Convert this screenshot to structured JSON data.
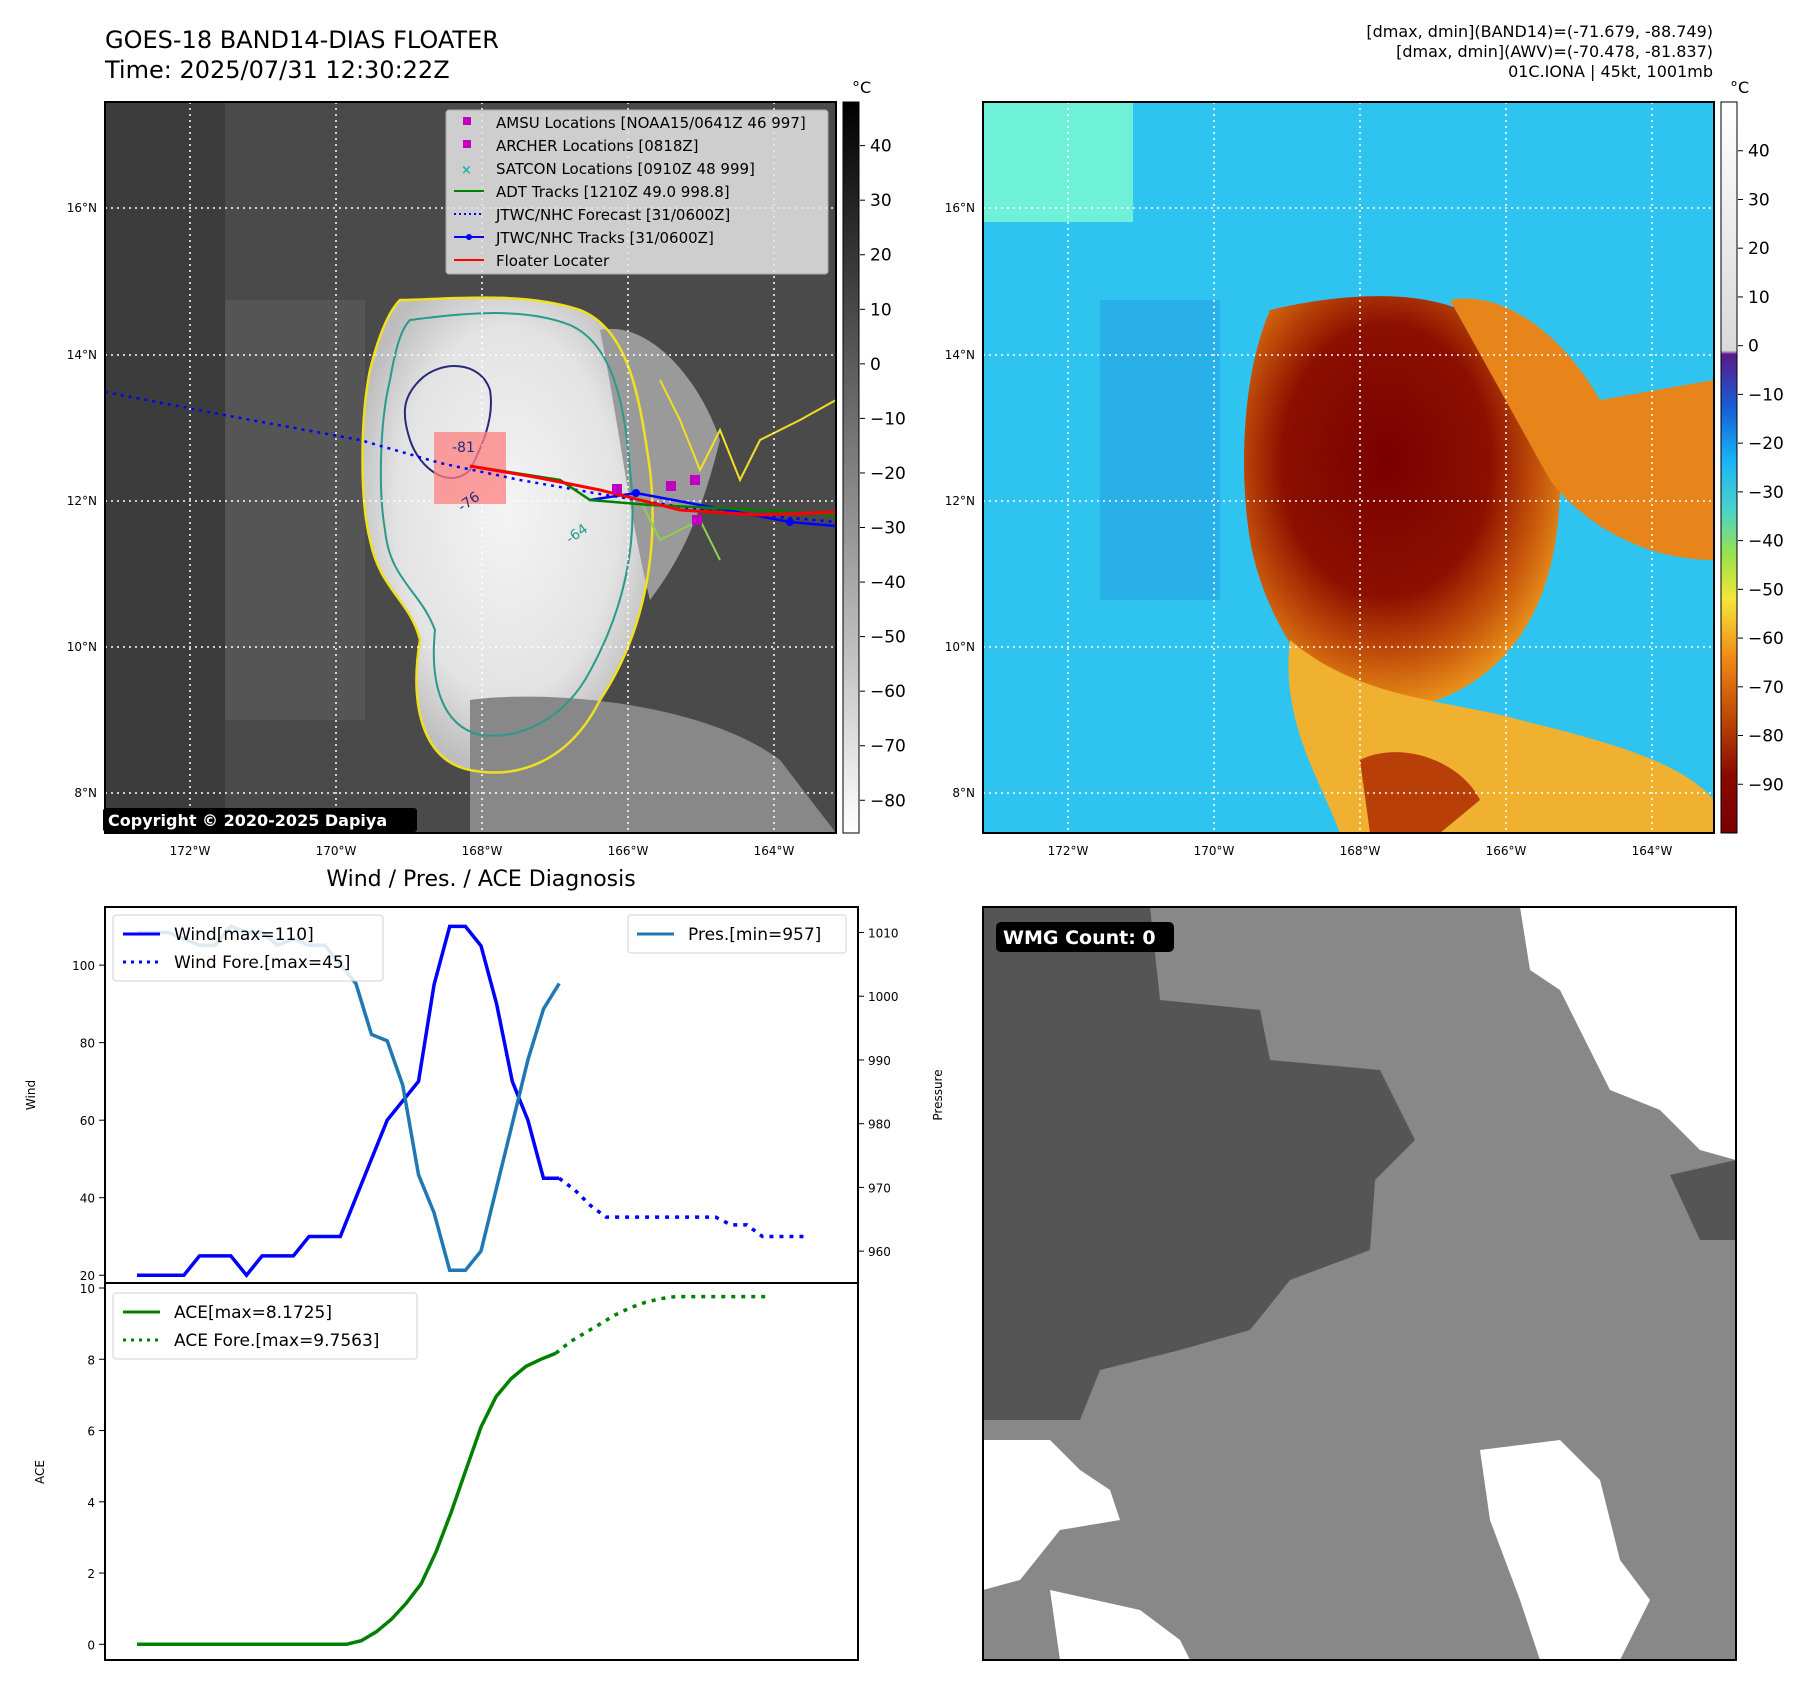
{
  "header": {
    "title_line1": "GOES-18 BAND14-DIAS FLOATER",
    "title_line2": "Time: 2025/07/31 12:30:22Z",
    "info_line1": "[dmax, dmin](BAND14)=(-71.679, -88.749)",
    "info_line2": "[dmax, dmin](AWV)=(-70.478, -81.837)",
    "info_line3": "01C.IONA | 45kt, 1001mb"
  },
  "map_common": {
    "lon_ticks": [
      "172°W",
      "170°W",
      "168°W",
      "166°W",
      "164°W"
    ],
    "lat_ticks": [
      "16°N",
      "14°N",
      "12°N",
      "10°N",
      "8°N"
    ],
    "unit": "°C"
  },
  "ir_panel": {
    "colorbar_ticks": [
      "40",
      "30",
      "20",
      "10",
      "0",
      "−10",
      "−20",
      "−30",
      "−40",
      "−50",
      "−60",
      "−70",
      "−80"
    ],
    "contour_labels": [
      "-81",
      "-76",
      "-64"
    ],
    "copyright": "Copyright © 2020-2025 Dapiya",
    "legend": [
      {
        "label": "AMSU Locations [NOAA15/0641Z 46 997]",
        "marker": "square",
        "color": "#c000c0"
      },
      {
        "label": "ARCHER Locations [0818Z]",
        "marker": "square",
        "color": "#c000c0"
      },
      {
        "label": "SATCON Locations [0910Z 48 999]",
        "marker": "x",
        "color": "#20b2aa"
      },
      {
        "label": "ADT Tracks [1210Z 49.0 998.8]",
        "marker": "line",
        "color": "#008000"
      },
      {
        "label": "JTWC/NHC Forecast [31/0600Z]",
        "marker": "dotted",
        "color": "#0000ff"
      },
      {
        "label": "JTWC/NHC Tracks [31/0600Z]",
        "marker": "line-dot",
        "color": "#0000ff"
      },
      {
        "label": "Floater Locater",
        "marker": "line",
        "color": "#ff0000"
      }
    ]
  },
  "awv_panel": {
    "colorbar_ticks": [
      "40",
      "30",
      "20",
      "10",
      "0",
      "−10",
      "−20",
      "−30",
      "−40",
      "−50",
      "−60",
      "−70",
      "−80",
      "−90"
    ]
  },
  "wmg_panel": {
    "badge": "WMG Count: 0"
  },
  "chart_data": [
    {
      "type": "line",
      "title": "Wind / Pres. / ACE Diagnosis",
      "ylabel": "Wind",
      "y2label": "Pressure",
      "ylim": [
        18,
        115
      ],
      "y2lim": [
        955,
        1014
      ],
      "yticks": [
        20,
        40,
        60,
        80,
        100
      ],
      "y2ticks": [
        960,
        970,
        980,
        990,
        1000,
        1010
      ],
      "series": [
        {
          "name": "Wind[max=110]",
          "color": "#0000ff",
          "style": "solid",
          "axis": "left",
          "values": [
            20,
            20,
            20,
            20,
            25,
            25,
            25,
            20,
            25,
            25,
            25,
            30,
            30,
            30,
            40,
            50,
            60,
            65,
            70,
            95,
            110,
            110,
            105,
            90,
            70,
            60,
            45,
            45
          ]
        },
        {
          "name": "Wind Fore.[max=45]",
          "color": "#0000ff",
          "style": "dotted",
          "axis": "left",
          "x_start": 27,
          "values": [
            45,
            42,
            38,
            35,
            35,
            35,
            35,
            35,
            35,
            35,
            35,
            33,
            33,
            30,
            30,
            30,
            30
          ]
        },
        {
          "name": "Pres.[min=957]",
          "color": "#1f77b4",
          "style": "solid",
          "axis": "right",
          "values": [
            1010,
            1010,
            1010,
            1009,
            1008,
            1008,
            1011,
            1010,
            1010,
            1008,
            1009,
            1008,
            1008,
            1005,
            1002,
            994,
            993,
            986,
            972,
            966,
            957,
            957,
            960,
            970,
            980,
            990,
            998,
            1002
          ]
        }
      ]
    },
    {
      "type": "line",
      "ylabel": "ACE",
      "ylim": [
        -0.3,
        10
      ],
      "yticks": [
        0,
        2,
        4,
        6,
        8,
        10
      ],
      "series": [
        {
          "name": "ACE[max=8.1725]",
          "color": "#008000",
          "style": "solid",
          "values": [
            0,
            0,
            0,
            0,
            0,
            0,
            0,
            0,
            0,
            0,
            0,
            0,
            0,
            0,
            0,
            0.1,
            0.35,
            0.7,
            1.15,
            1.7,
            2.6,
            3.7,
            4.9,
            6.1,
            6.95,
            7.45,
            7.8,
            8.0,
            8.17
          ]
        },
        {
          "name": "ACE Fore.[max=9.7563]",
          "color": "#008000",
          "style": "dotted",
          "x_start": 28,
          "values": [
            8.17,
            8.5,
            8.75,
            9.0,
            9.25,
            9.45,
            9.6,
            9.7,
            9.76,
            9.76,
            9.76,
            9.76,
            9.76,
            9.76,
            9.76
          ]
        }
      ]
    }
  ]
}
